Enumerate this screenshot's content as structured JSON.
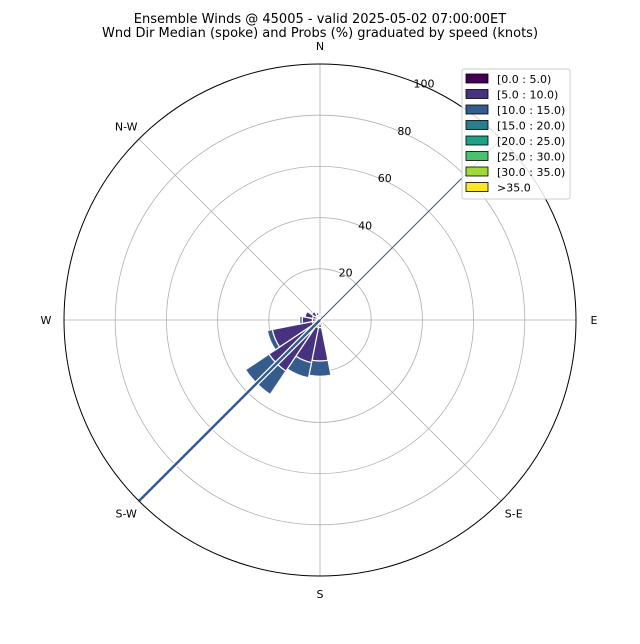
{
  "chart_data": {
    "type": "windrose",
    "title": "Ensemble Winds @ 45005 - valid 2025-05-02 07:00:00ET",
    "subtitle": "Wnd Dir Median (spoke) and Probs (%) graduated by speed (knots)",
    "direction_labels": [
      {
        "label": "N",
        "angle_deg": 0
      },
      {
        "label": "E",
        "angle_deg": 90
      },
      {
        "label": "S-E",
        "angle_deg": 135
      },
      {
        "label": "S",
        "angle_deg": 180
      },
      {
        "label": "S-W",
        "angle_deg": 225
      },
      {
        "label": "W",
        "angle_deg": 270
      },
      {
        "label": "N-W",
        "angle_deg": 315
      }
    ],
    "radial_ticks": [
      20,
      40,
      60,
      80,
      100
    ],
    "rmax": 100,
    "grid": true,
    "legend_position": "top-right",
    "speed_bins": [
      {
        "label": "[0.0 : 5.0)",
        "color": "#440154"
      },
      {
        "label": "[5.0 : 10.0)",
        "color": "#46327e"
      },
      {
        "label": "[10.0 : 15.0)",
        "color": "#365c8d"
      },
      {
        "label": "[15.0 : 20.0)",
        "color": "#277f8e"
      },
      {
        "label": "[20.0 : 25.0)",
        "color": "#1fa187"
      },
      {
        "label": "[25.0 : 30.0)",
        "color": "#4ac16d"
      },
      {
        "label": "[30.0 : 35.0)",
        "color": "#a0da39"
      },
      {
        "label": ">35.0",
        "color": "#fde725"
      }
    ],
    "sector_width_deg": 22.5,
    "sectors": [
      {
        "direction_deg": 180,
        "cumulative": [
          0,
          3,
          16,
          22
        ]
      },
      {
        "direction_deg": 202.5,
        "cumulative": [
          0,
          3,
          17,
          23
        ]
      },
      {
        "direction_deg": 225,
        "cumulative": [
          0,
          3,
          24,
          35
        ]
      },
      {
        "direction_deg": 247.5,
        "cumulative": [
          0,
          3,
          19,
          21
        ]
      },
      {
        "direction_deg": 270,
        "cumulative": [
          0,
          3,
          7,
          8
        ]
      },
      {
        "direction_deg": 292.5,
        "cumulative": [
          0,
          3,
          6
        ]
      },
      {
        "direction_deg": 315,
        "cumulative": [
          0,
          2,
          4
        ]
      },
      {
        "direction_deg": 337.5,
        "cumulative": [
          0,
          2,
          3
        ]
      },
      {
        "direction_deg": 0,
        "cumulative": [
          0,
          2
        ]
      },
      {
        "direction_deg": 22.5,
        "cumulative": [
          0,
          2
        ]
      },
      {
        "direction_deg": 45,
        "cumulative": [
          0,
          1
        ]
      },
      {
        "direction_deg": 67.5,
        "cumulative": [
          0,
          1
        ]
      },
      {
        "direction_deg": 90,
        "cumulative": [
          0,
          1
        ]
      },
      {
        "direction_deg": 112.5,
        "cumulative": [
          0,
          1
        ]
      },
      {
        "direction_deg": 135,
        "cumulative": [
          0,
          1
        ]
      },
      {
        "direction_deg": 157.5,
        "cumulative": [
          0,
          1,
          2
        ]
      }
    ],
    "median_spoke": {
      "direction_deg": 225,
      "value": 100,
      "color": "#365c8d"
    },
    "reference_line": {
      "direction_deg": 45,
      "value": 100,
      "color": "#365c8d"
    }
  }
}
